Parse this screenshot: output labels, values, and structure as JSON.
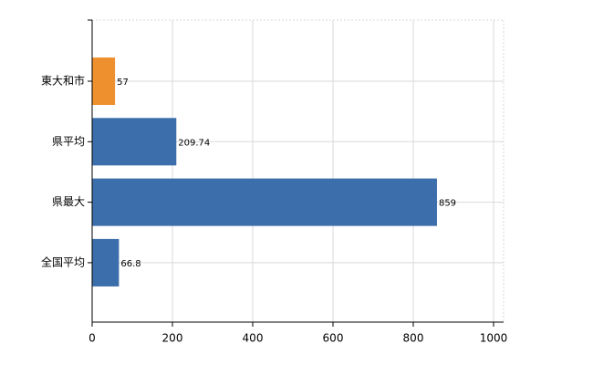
{
  "chart_data": {
    "type": "bar",
    "orientation": "horizontal",
    "categories": [
      "東大和市",
      "県平均",
      "県最大",
      "全国平均"
    ],
    "values": [
      57,
      209.74,
      859,
      66.8
    ],
    "colors": [
      "#ef902f",
      "#3b6eaa",
      "#3b6eaa",
      "#3b6eaa"
    ],
    "xlim": [
      0,
      1025
    ],
    "xticks": [
      0,
      200,
      400,
      600,
      800,
      1000
    ],
    "grid": true
  }
}
